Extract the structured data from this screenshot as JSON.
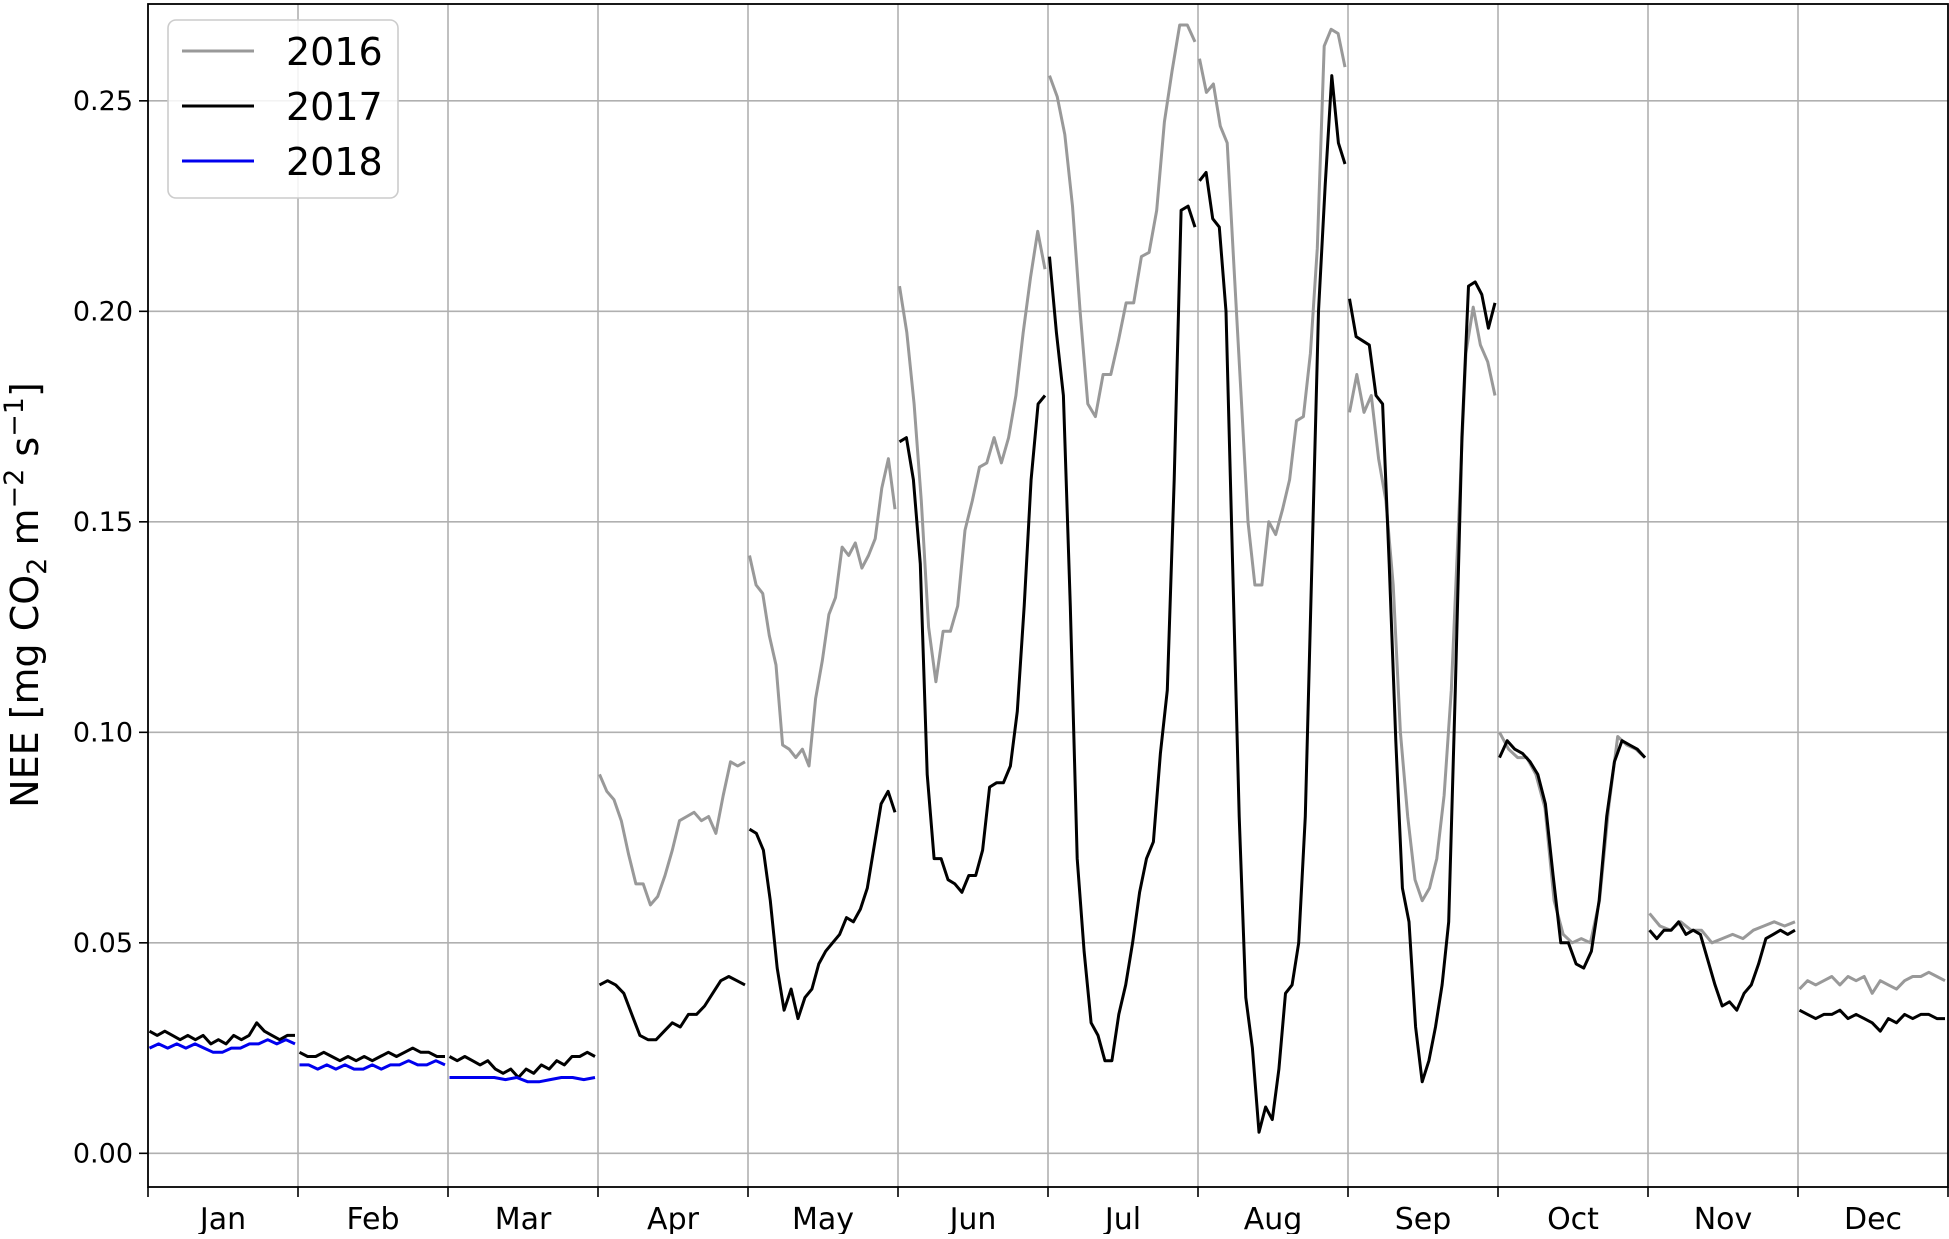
{
  "chart_data": {
    "type": "line",
    "title": "",
    "xlabel": "",
    "ylabel": "NEE [mg CO2 m−2 s−1]",
    "ylabel_parts": {
      "pre": "NEE [mg CO",
      "sub": "2",
      "mid": " m",
      "sup1": "−2",
      "mid2": " s",
      "sup2": "−1",
      "post": "]"
    },
    "ylim": [
      -0.008,
      0.273
    ],
    "yticks": [
      0.0,
      0.05,
      0.1,
      0.15,
      0.2,
      0.25
    ],
    "ytick_labels": [
      "0.00",
      "0.05",
      "0.10",
      "0.15",
      "0.20",
      "0.25"
    ],
    "months": [
      "Jan",
      "Feb",
      "Mar",
      "Apr",
      "May",
      "Jun",
      "Jul",
      "Aug",
      "Sep",
      "Oct",
      "Nov",
      "Dec"
    ],
    "grid": true,
    "legend_position": "top-left",
    "x_unit": "fraction of month",
    "series": [
      {
        "name": "2016",
        "color": "#999999",
        "segments": [
          {
            "month": 3,
            "values": [
              0.09,
              0.086,
              0.084,
              0.079,
              0.071,
              0.064,
              0.064,
              0.059,
              0.061,
              0.066,
              0.072,
              0.079,
              0.08,
              0.081,
              0.079,
              0.08,
              0.076,
              0.085,
              0.093,
              0.092,
              0.093
            ]
          },
          {
            "month": 4,
            "values": [
              0.142,
              0.135,
              0.133,
              0.123,
              0.116,
              0.097,
              0.096,
              0.094,
              0.096,
              0.092,
              0.108,
              0.117,
              0.128,
              0.132,
              0.144,
              0.142,
              0.145,
              0.139,
              0.142,
              0.146,
              0.158,
              0.165,
              0.153
            ]
          },
          {
            "month": 5,
            "values": [
              0.206,
              0.195,
              0.178,
              0.155,
              0.125,
              0.112,
              0.124,
              0.124,
              0.13,
              0.148,
              0.155,
              0.163,
              0.164,
              0.17,
              0.164,
              0.17,
              0.18,
              0.195,
              0.208,
              0.219,
              0.21
            ]
          },
          {
            "month": 6,
            "values": [
              0.256,
              0.251,
              0.242,
              0.225,
              0.2,
              0.178,
              0.175,
              0.185,
              0.185,
              0.193,
              0.202,
              0.202,
              0.213,
              0.214,
              0.224,
              0.245,
              0.257,
              0.268,
              0.268,
              0.264
            ]
          },
          {
            "month": 7,
            "values": [
              0.26,
              0.252,
              0.254,
              0.244,
              0.24,
              0.21,
              0.18,
              0.15,
              0.135,
              0.135,
              0.15,
              0.147,
              0.153,
              0.16,
              0.174,
              0.175,
              0.19,
              0.215,
              0.263,
              0.267,
              0.266,
              0.258
            ]
          },
          {
            "month": 8,
            "values": [
              0.176,
              0.185,
              0.176,
              0.18,
              0.165,
              0.155,
              0.135,
              0.1,
              0.08,
              0.065,
              0.06,
              0.063,
              0.07,
              0.085,
              0.11,
              0.15,
              0.19,
              0.201,
              0.192,
              0.188,
              0.18
            ]
          },
          {
            "month": 9,
            "values": [
              0.1,
              0.096,
              0.094,
              0.094,
              0.09,
              0.082,
              0.06,
              0.052,
              0.05,
              0.051,
              0.05,
              0.06,
              0.082,
              0.099,
              0.097,
              0.096,
              0.094
            ]
          },
          {
            "month": 10,
            "values": [
              0.057,
              0.054,
              0.053,
              0.055,
              0.053,
              0.053,
              0.05,
              0.051,
              0.052,
              0.051,
              0.053,
              0.054,
              0.055,
              0.054,
              0.055
            ]
          },
          {
            "month": 11,
            "values": [
              0.039,
              0.041,
              0.04,
              0.041,
              0.042,
              0.04,
              0.042,
              0.041,
              0.042,
              0.038,
              0.041,
              0.04,
              0.039,
              0.041,
              0.042,
              0.042,
              0.043,
              0.042,
              0.041
            ]
          }
        ]
      },
      {
        "name": "2017",
        "color": "#000000",
        "segments": [
          {
            "month": 0,
            "values": [
              0.029,
              0.028,
              0.029,
              0.028,
              0.027,
              0.028,
              0.027,
              0.028,
              0.026,
              0.027,
              0.026,
              0.028,
              0.027,
              0.028,
              0.031,
              0.029,
              0.028,
              0.027,
              0.028,
              0.028
            ]
          },
          {
            "month": 1,
            "values": [
              0.024,
              0.023,
              0.023,
              0.024,
              0.023,
              0.022,
              0.023,
              0.022,
              0.023,
              0.022,
              0.023,
              0.024,
              0.023,
              0.024,
              0.025,
              0.024,
              0.024,
              0.023,
              0.023
            ]
          },
          {
            "month": 2,
            "values": [
              0.023,
              0.022,
              0.023,
              0.022,
              0.021,
              0.022,
              0.02,
              0.019,
              0.02,
              0.018,
              0.02,
              0.019,
              0.021,
              0.02,
              0.022,
              0.021,
              0.023,
              0.023,
              0.024,
              0.023
            ]
          },
          {
            "month": 3,
            "values": [
              0.04,
              0.041,
              0.04,
              0.038,
              0.033,
              0.028,
              0.027,
              0.027,
              0.029,
              0.031,
              0.03,
              0.033,
              0.033,
              0.035,
              0.038,
              0.041,
              0.042,
              0.041,
              0.04
            ]
          },
          {
            "month": 4,
            "values": [
              0.077,
              0.076,
              0.072,
              0.06,
              0.044,
              0.034,
              0.039,
              0.032,
              0.037,
              0.039,
              0.045,
              0.048,
              0.05,
              0.052,
              0.056,
              0.055,
              0.058,
              0.063,
              0.073,
              0.083,
              0.086,
              0.081
            ]
          },
          {
            "month": 5,
            "values": [
              0.169,
              0.17,
              0.16,
              0.14,
              0.09,
              0.07,
              0.07,
              0.065,
              0.064,
              0.062,
              0.066,
              0.066,
              0.072,
              0.087,
              0.088,
              0.088,
              0.092,
              0.105,
              0.13,
              0.16,
              0.178,
              0.18
            ]
          },
          {
            "month": 6,
            "values": [
              0.213,
              0.195,
              0.18,
              0.13,
              0.07,
              0.048,
              0.031,
              0.028,
              0.022,
              0.022,
              0.033,
              0.04,
              0.05,
              0.062,
              0.07,
              0.074,
              0.095,
              0.11,
              0.16,
              0.224,
              0.225,
              0.22
            ]
          },
          {
            "month": 7,
            "values": [
              0.231,
              0.233,
              0.222,
              0.22,
              0.2,
              0.14,
              0.08,
              0.037,
              0.025,
              0.005,
              0.011,
              0.008,
              0.02,
              0.038,
              0.04,
              0.05,
              0.08,
              0.14,
              0.2,
              0.23,
              0.256,
              0.24,
              0.235
            ]
          },
          {
            "month": 8,
            "values": [
              0.203,
              0.194,
              0.193,
              0.192,
              0.18,
              0.178,
              0.14,
              0.098,
              0.063,
              0.055,
              0.03,
              0.017,
              0.022,
              0.03,
              0.04,
              0.055,
              0.11,
              0.17,
              0.206,
              0.207,
              0.204,
              0.196,
              0.202
            ]
          },
          {
            "month": 9,
            "values": [
              0.094,
              0.098,
              0.096,
              0.095,
              0.093,
              0.09,
              0.083,
              0.066,
              0.05,
              0.05,
              0.045,
              0.044,
              0.048,
              0.06,
              0.08,
              0.093,
              0.098,
              0.097,
              0.096,
              0.094
            ]
          },
          {
            "month": 10,
            "values": [
              0.053,
              0.051,
              0.053,
              0.053,
              0.055,
              0.052,
              0.053,
              0.052,
              0.046,
              0.04,
              0.035,
              0.036,
              0.034,
              0.038,
              0.04,
              0.045,
              0.051,
              0.052,
              0.053,
              0.052,
              0.053
            ]
          },
          {
            "month": 11,
            "values": [
              0.034,
              0.033,
              0.032,
              0.033,
              0.033,
              0.034,
              0.032,
              0.033,
              0.032,
              0.031,
              0.029,
              0.032,
              0.031,
              0.033,
              0.032,
              0.033,
              0.033,
              0.032,
              0.032
            ]
          }
        ]
      },
      {
        "name": "2018",
        "color": "#0000ee",
        "segments": [
          {
            "month": 0,
            "values": [
              0.025,
              0.026,
              0.025,
              0.026,
              0.025,
              0.026,
              0.025,
              0.024,
              0.024,
              0.025,
              0.025,
              0.026,
              0.026,
              0.027,
              0.026,
              0.027,
              0.026
            ]
          },
          {
            "month": 1,
            "values": [
              0.021,
              0.021,
              0.02,
              0.021,
              0.02,
              0.021,
              0.02,
              0.02,
              0.021,
              0.02,
              0.021,
              0.021,
              0.022,
              0.021,
              0.021,
              0.022,
              0.021
            ]
          },
          {
            "month": 2,
            "values": [
              0.018,
              0.018,
              0.018,
              0.018,
              0.018,
              0.0175,
              0.018,
              0.017,
              0.017,
              0.0175,
              0.018,
              0.018,
              0.0175,
              0.018
            ]
          }
        ]
      }
    ]
  }
}
